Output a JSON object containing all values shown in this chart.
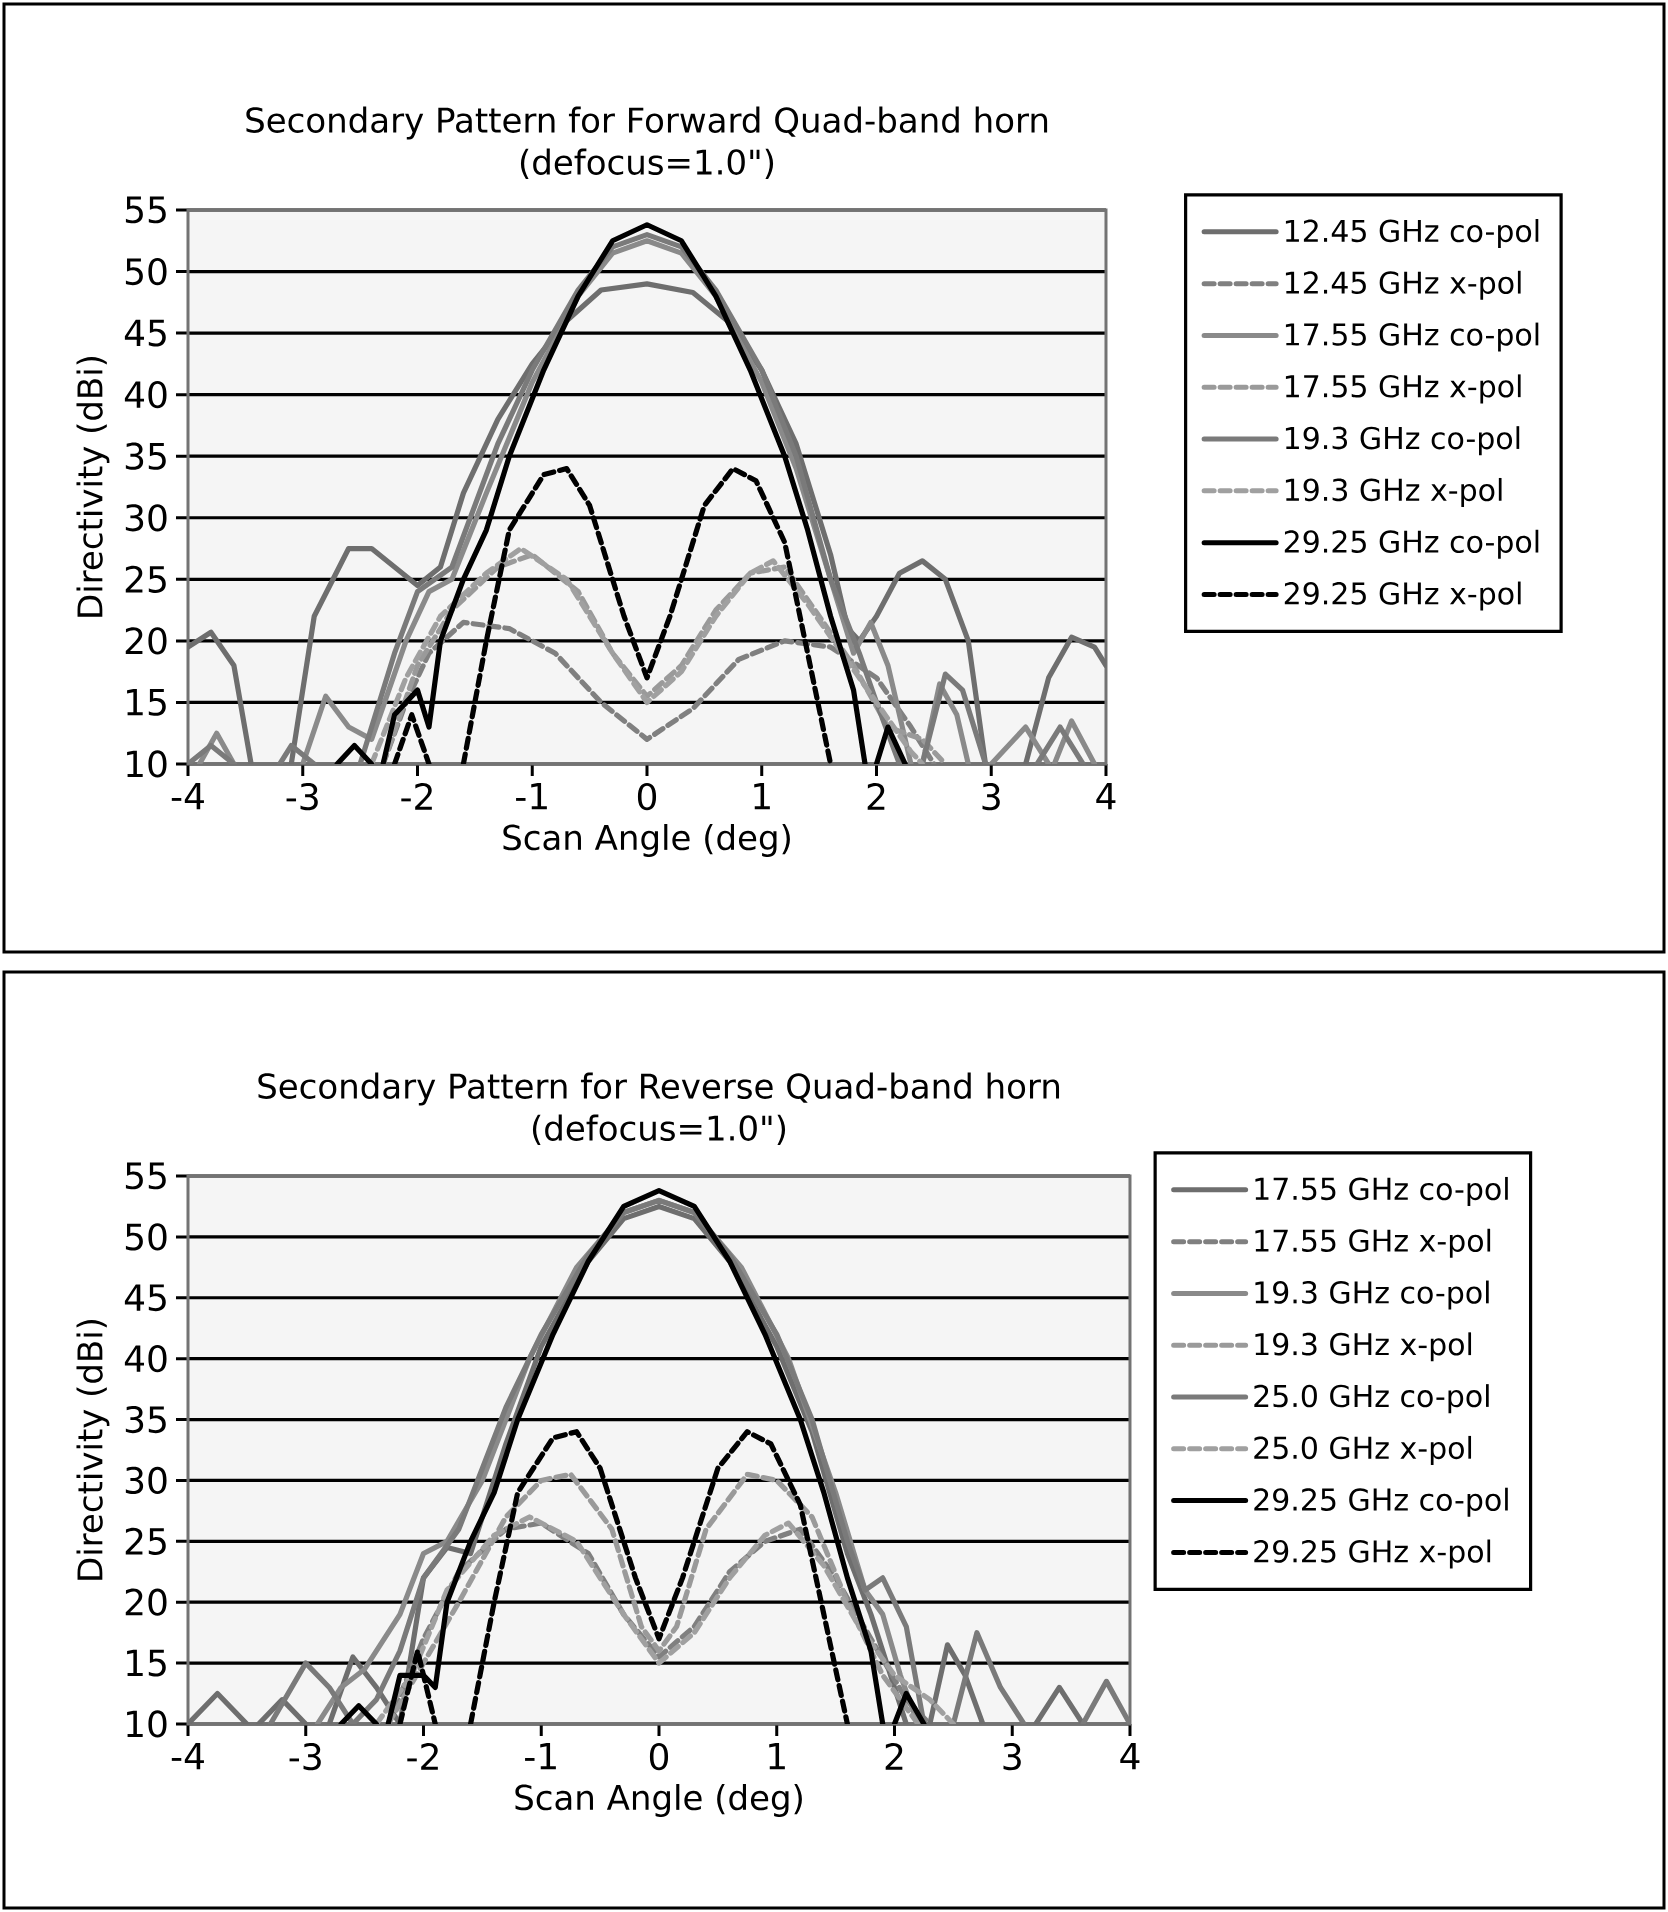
{
  "chart_data": [
    {
      "type": "line",
      "title": "Secondary Pattern for Forward Quad-band horn",
      "subtitle": "(defocus=1.0\")",
      "xlabel": "Scan Angle (deg)",
      "ylabel": "Directivity (dBi)",
      "xlim": [
        -4,
        4
      ],
      "ylim": [
        10,
        55
      ],
      "xticks": [
        -4,
        -3,
        -2,
        -1,
        0,
        1,
        2,
        3,
        4
      ],
      "yticks": [
        10,
        15,
        20,
        25,
        30,
        35,
        40,
        45,
        50,
        55
      ],
      "grid": "y",
      "legend": "right",
      "series": [
        {
          "name": "12.45 GHz co-pol",
          "color": "#6e6e6e",
          "line_style": "solid",
          "x": [
            -4,
            -3.8,
            -3.6,
            -3.45,
            -3.3,
            -3.1,
            -2.9,
            -2.6,
            -2.4,
            -2.2,
            -2.0,
            -1.8,
            -1.6,
            -1.3,
            -1.0,
            -0.7,
            -0.4,
            0,
            0.4,
            0.7,
            1.0,
            1.3,
            1.6,
            1.75,
            1.85,
            2.0,
            2.2,
            2.4,
            2.6,
            2.8,
            2.95,
            3.1,
            3.3,
            3.5,
            3.7,
            3.9,
            4
          ],
          "values": [
            19.5,
            20.7,
            18,
            10,
            null,
            10,
            22,
            27.5,
            27.5,
            26,
            24.5,
            26,
            32,
            38,
            42.5,
            46,
            48.5,
            49,
            48.3,
            46,
            42,
            36,
            27,
            21,
            20,
            22,
            25.5,
            26.5,
            25,
            20,
            10,
            null,
            10,
            17,
            20.3,
            19.5,
            18
          ]
        },
        {
          "name": "12.45 GHz x-pol",
          "color": "#808080",
          "line_style": "dashed",
          "x": [
            -2.3,
            -2.1,
            -1.9,
            -1.6,
            -1.2,
            -0.8,
            -0.4,
            0,
            0.4,
            0.8,
            1.2,
            1.6,
            2.0,
            2.3,
            2.5
          ],
          "values": [
            10,
            15,
            19,
            21.5,
            21,
            19,
            15,
            12,
            14.5,
            18.5,
            20,
            19.5,
            17,
            13,
            10
          ]
        },
        {
          "name": "17.55 GHz co-pol",
          "color": "#8a8a8a",
          "line_style": "solid",
          "x": [
            -3.9,
            -3.75,
            -3.6,
            -3.3,
            -3.0,
            -2.8,
            -2.6,
            -2.4,
            -2.1,
            -1.9,
            -1.7,
            -1.4,
            -1.0,
            -0.6,
            -0.3,
            0,
            0.3,
            0.6,
            1.0,
            1.3,
            1.6,
            1.8,
            1.95,
            2.1,
            2.3,
            2.35,
            2.4,
            2.55,
            2.7,
            2.8,
            2.9,
            3.0,
            3.3,
            3.5,
            3.52,
            3.55,
            3.7,
            3.9
          ],
          "values": [
            10,
            12.5,
            10,
            null,
            10,
            15.5,
            13,
            12,
            20,
            24,
            25,
            32,
            41,
            48,
            51.5,
            52.5,
            51.5,
            48,
            41,
            34,
            25,
            19,
            21.5,
            18,
            10,
            null,
            10,
            16.5,
            14,
            10,
            null,
            10,
            13,
            10,
            null,
            10,
            13.5,
            10
          ]
        },
        {
          "name": "17.55 GHz x-pol",
          "color": "#9a9a9a",
          "line_style": "dashed",
          "x": [
            -2.3,
            -2.0,
            -1.7,
            -1.3,
            -1.0,
            -0.6,
            -0.3,
            0,
            0.3,
            0.6,
            0.9,
            1.2,
            1.5,
            1.8,
            2.1,
            2.4,
            2.6
          ],
          "values": [
            10,
            18,
            22.5,
            26,
            27,
            24,
            19,
            15.5,
            18,
            22.5,
            25.5,
            26,
            22,
            18,
            13,
            12,
            10
          ]
        },
        {
          "name": "19.3 GHz co-pol",
          "color": "#7a7a7a",
          "line_style": "solid",
          "x": [
            -4,
            -3.8,
            -3.6,
            -3.4,
            -3.2,
            -3.1,
            -2.9,
            -2.7,
            -2.5,
            -2.2,
            -2.0,
            -1.7,
            -1.3,
            -1.0,
            -0.6,
            -0.3,
            0,
            0.3,
            0.6,
            1.0,
            1.3,
            1.6,
            1.85,
            2.0,
            2.2,
            2.3,
            2.4,
            2.6,
            2.75,
            2.95,
            3.2,
            3.4,
            3.6,
            3.8
          ],
          "values": [
            10,
            11.5,
            10,
            null,
            10,
            11.5,
            10,
            null,
            10,
            19,
            24,
            26,
            36,
            42,
            48.5,
            52,
            53,
            52,
            48.5,
            42,
            35,
            25,
            19,
            15,
            10,
            null,
            10,
            17.3,
            16,
            10,
            null,
            10,
            13,
            10
          ]
        },
        {
          "name": "19.3 GHz x-pol",
          "color": "#a0a0a0",
          "line_style": "dashed",
          "x": [
            -2.4,
            -2.1,
            -1.8,
            -1.4,
            -1.1,
            -0.7,
            -0.3,
            0,
            0.3,
            0.6,
            0.9,
            1.1,
            1.4,
            1.7,
            2.0,
            2.3,
            2.4
          ],
          "values": [
            10,
            17,
            22,
            25.5,
            27.5,
            25,
            19,
            15,
            17.5,
            22,
            25.5,
            26.5,
            23,
            19,
            15,
            11,
            10
          ]
        },
        {
          "name": "29.25 GHz co-pol",
          "color": "#000000",
          "line_style": "solid",
          "x": [
            -2.7,
            -2.55,
            -2.4,
            -2.35,
            -2.3,
            -2.2,
            -2.0,
            -1.9,
            -1.8,
            -1.6,
            -1.4,
            -1.2,
            -0.9,
            -0.6,
            -0.3,
            0,
            0.3,
            0.6,
            0.9,
            1.2,
            1.4,
            1.6,
            1.8,
            1.9,
            1.95,
            2.0,
            2.1,
            2.25
          ],
          "values": [
            10,
            11.5,
            10,
            null,
            10,
            14,
            16,
            13,
            20,
            25,
            29,
            35,
            42,
            48,
            52.5,
            53.8,
            52.5,
            48,
            42,
            35,
            29,
            22,
            16,
            10,
            null,
            10,
            13,
            10
          ]
        },
        {
          "name": "29.25 GHz x-pol",
          "color": "#000000",
          "line_style": "dashed",
          "x": [
            -2.2,
            -2.05,
            -1.9,
            -1.75,
            -1.6,
            -1.4,
            -1.2,
            -0.9,
            -0.7,
            -0.5,
            -0.2,
            0,
            0.2,
            0.5,
            0.75,
            0.95,
            1.2,
            1.4,
            1.6
          ],
          "values": [
            10,
            14,
            10,
            null,
            10,
            20,
            29,
            33.5,
            34,
            31,
            22,
            17,
            22,
            31,
            34,
            33,
            28,
            19,
            10
          ]
        }
      ]
    },
    {
      "type": "line",
      "title": "Secondary Pattern for Reverse Quad-band horn",
      "subtitle": "(defocus=1.0\")",
      "xlabel": "Scan Angle (deg)",
      "ylabel": "Directivity (dBi)",
      "xlim": [
        -4,
        4
      ],
      "ylim": [
        10,
        55
      ],
      "xticks": [
        -4,
        -3,
        -2,
        -1,
        0,
        1,
        2,
        3,
        4
      ],
      "yticks": [
        10,
        15,
        20,
        25,
        30,
        35,
        40,
        45,
        50,
        55
      ],
      "grid": "y",
      "legend": "right",
      "series": [
        {
          "name": "17.55 GHz co-pol",
          "color": "#6e6e6e",
          "line_style": "solid",
          "x": [
            -4,
            -3.75,
            -3.5,
            -3.45,
            -3.4,
            -3.2,
            -3.0,
            -2.9,
            -2.8,
            -2.6,
            -2.4,
            -2.2,
            -2.0,
            -1.8,
            -1.6,
            -1.3,
            -1.0,
            -0.6,
            -0.3,
            0,
            0.3,
            0.6,
            1.0,
            1.3,
            1.6,
            1.8,
            2.0,
            2.1,
            2.2,
            2.3,
            2.45,
            2.6,
            2.75,
            3.0,
            3.2,
            3.4,
            3.6
          ],
          "values": [
            10,
            12.5,
            10,
            null,
            10,
            12,
            10,
            null,
            10,
            15.5,
            13,
            10,
            22,
            24.5,
            24,
            33,
            41,
            48,
            51.5,
            52.5,
            51.5,
            48,
            41,
            34,
            24,
            19,
            13,
            10,
            null,
            10,
            16.5,
            14,
            10,
            null,
            10,
            13,
            10
          ]
        },
        {
          "name": "17.55 GHz x-pol",
          "color": "#808080",
          "line_style": "dashed",
          "x": [
            -2.3,
            -2.0,
            -1.7,
            -1.3,
            -1.0,
            -0.6,
            -0.3,
            0,
            0.3,
            0.6,
            0.9,
            1.2,
            1.5,
            1.8,
            2.1,
            2.3
          ],
          "values": [
            10,
            17,
            22.5,
            26,
            26.5,
            24,
            19,
            15.5,
            18,
            22.5,
            25,
            26,
            22,
            17,
            12,
            10
          ]
        },
        {
          "name": "19.3 GHz co-pol",
          "color": "#8a8a8a",
          "line_style": "solid",
          "x": [
            -2.9,
            -2.7,
            -2.5,
            -2.2,
            -2.0,
            -1.8,
            -1.5,
            -1.1,
            -0.7,
            -0.3,
            0,
            0.3,
            0.7,
            1.1,
            1.5,
            1.75,
            1.9,
            2.05,
            2.2
          ],
          "values": [
            10,
            13,
            14.5,
            19,
            24,
            25,
            30,
            40,
            47.5,
            52,
            53,
            52,
            47.5,
            40,
            29,
            21,
            19,
            14,
            10
          ]
        },
        {
          "name": "19.3 GHz x-pol",
          "color": "#9a9a9a",
          "line_style": "dashed",
          "x": [
            -2.3,
            -2.0,
            -1.7,
            -1.3,
            -1.0,
            -0.75,
            -0.4,
            -0.15,
            0,
            0.15,
            0.4,
            0.75,
            1.0,
            1.3,
            1.6,
            1.9,
            2.2
          ],
          "values": [
            10,
            15,
            20,
            27,
            30,
            30.5,
            26,
            18,
            16,
            18,
            26,
            30.5,
            30,
            27,
            20,
            14,
            10
          ]
        },
        {
          "name": "25.0 GHz co-pol",
          "color": "#7a7a7a",
          "line_style": "solid",
          "x": [
            -3.3,
            -3.0,
            -2.8,
            -2.6,
            -2.4,
            -2.2,
            -2.0,
            -1.7,
            -1.3,
            -1.0,
            -0.6,
            -0.3,
            0,
            0.3,
            0.6,
            1.0,
            1.3,
            1.6,
            1.75,
            1.9,
            2.1,
            2.25,
            2.4,
            2.5,
            2.7,
            2.9,
            3.1,
            3.3,
            3.6,
            3.8,
            4
          ],
          "values": [
            10,
            15,
            13,
            10,
            12,
            16,
            22,
            26,
            36,
            42,
            48.5,
            52,
            53,
            52,
            48.5,
            42,
            35,
            25,
            21,
            22,
            18,
            10,
            null,
            10,
            17.5,
            13,
            10,
            null,
            10,
            13.5,
            10
          ]
        },
        {
          "name": "25.0 GHz x-pol",
          "color": "#a0a0a0",
          "line_style": "dashed",
          "x": [
            -2.4,
            -2.1,
            -1.8,
            -1.4,
            -1.1,
            -0.7,
            -0.3,
            0,
            0.3,
            0.6,
            0.9,
            1.1,
            1.4,
            1.7,
            2.0,
            2.3,
            2.5
          ],
          "values": [
            10,
            14,
            21,
            25.5,
            27,
            25,
            19,
            15,
            17.5,
            22,
            25.5,
            26.5,
            23,
            18,
            14,
            12,
            10
          ]
        },
        {
          "name": "29.25 GHz co-pol",
          "color": "#000000",
          "line_style": "solid",
          "x": [
            -2.7,
            -2.55,
            -2.4,
            -2.35,
            -2.3,
            -2.2,
            -2.0,
            -1.9,
            -1.8,
            -1.6,
            -1.4,
            -1.2,
            -0.9,
            -0.6,
            -0.3,
            0,
            0.3,
            0.6,
            0.9,
            1.2,
            1.4,
            1.6,
            1.8,
            1.9,
            1.95,
            2.0,
            2.1,
            2.25
          ],
          "values": [
            10,
            11.5,
            10,
            null,
            10,
            14,
            14,
            13,
            20,
            25,
            29,
            35,
            42,
            48,
            52.5,
            53.8,
            52.5,
            48,
            42,
            35,
            29,
            22,
            16,
            10,
            null,
            10,
            12.5,
            10
          ]
        },
        {
          "name": "29.25 GHz x-pol",
          "color": "#000000",
          "line_style": "dashed",
          "x": [
            -2.2,
            -2.05,
            -1.9,
            -1.75,
            -1.6,
            -1.4,
            -1.2,
            -0.9,
            -0.7,
            -0.5,
            -0.2,
            0,
            0.2,
            0.5,
            0.75,
            0.95,
            1.2,
            1.4,
            1.6
          ],
          "values": [
            10,
            16,
            10,
            null,
            10,
            20,
            29,
            33.5,
            34,
            31,
            22,
            17,
            22,
            31,
            34,
            33,
            28,
            19,
            10
          ]
        }
      ]
    }
  ]
}
